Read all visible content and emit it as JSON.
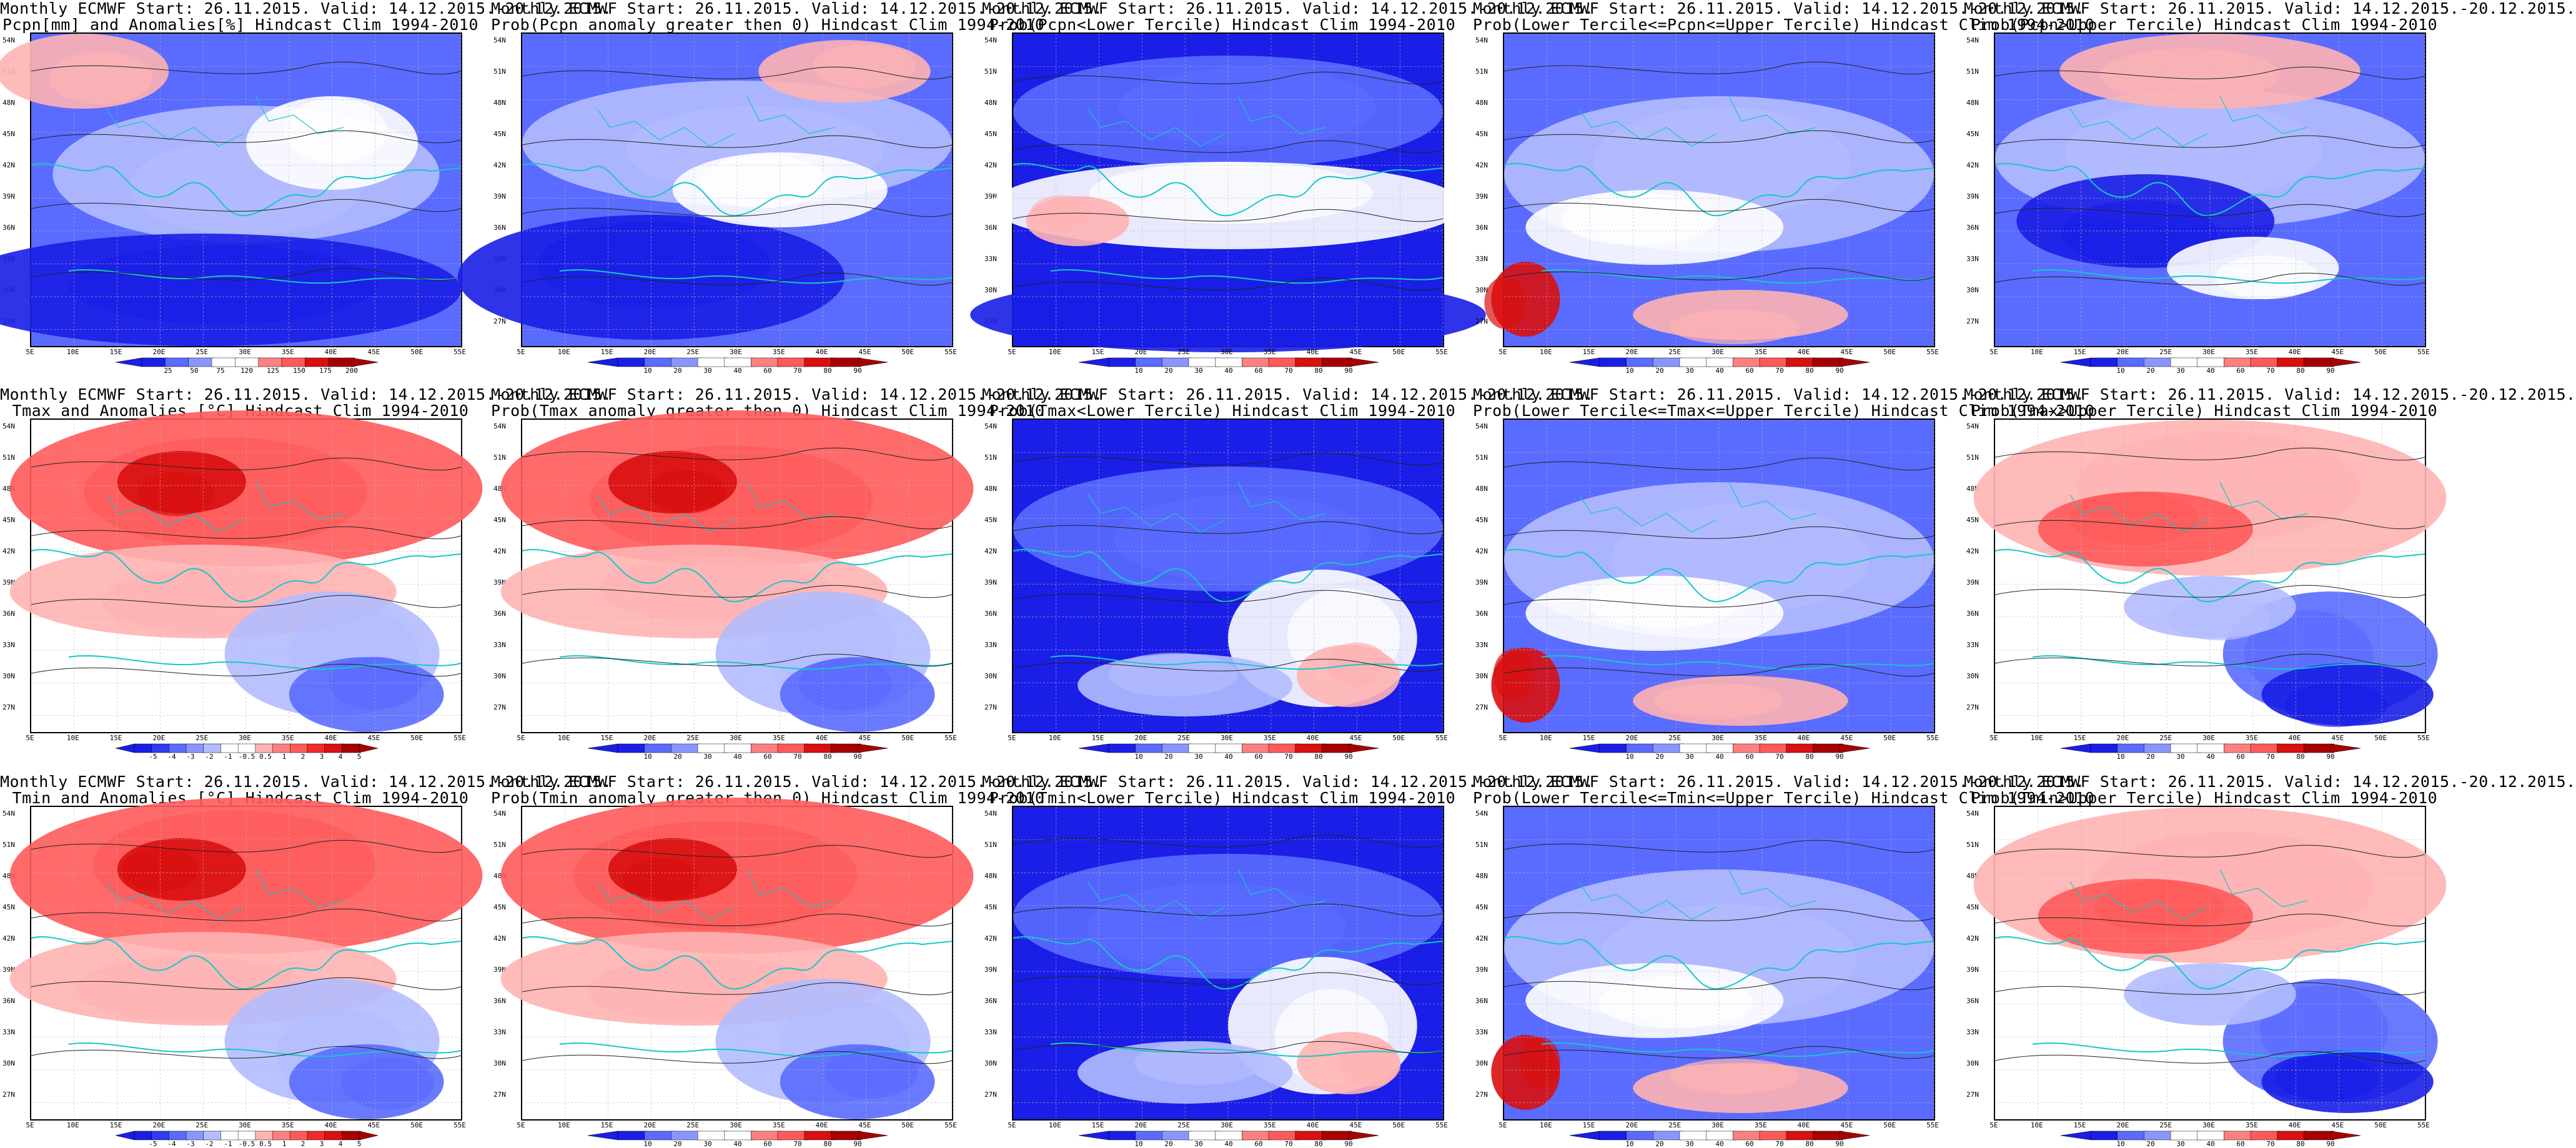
{
  "header_line1": "Monthly ECMWF Start: 26.11.2015. Valid: 14.12.2015.-20.12.2015.",
  "lat_labels": [
    "54N",
    "51N",
    "48N",
    "45N",
    "42N",
    "39N",
    "36N",
    "33N",
    "30N",
    "27N"
  ],
  "lon_labels": [
    "5E",
    "10E",
    "15E",
    "20E",
    "25E",
    "30E",
    "35E",
    "40E",
    "45E",
    "50E",
    "55E"
  ],
  "colorbars": {
    "pcpn_anom": [
      "25",
      "50",
      "75",
      "120",
      "125",
      "150",
      "175",
      "200"
    ],
    "temp_anom": [
      "-5",
      "-4",
      "-3",
      "-2",
      "-1",
      "-0.5",
      "0.5",
      "1",
      "2",
      "3",
      "4",
      "5"
    ],
    "prob": [
      "10",
      "20",
      "30",
      "40",
      "60",
      "70",
      "80",
      "90"
    ]
  },
  "rows": [
    {
      "variable": "Pcpn",
      "panels": [
        {
          "title2": "Pcpn[mm] and Anomalies[%] Hindcast Clim 1994-2010",
          "bar": "pcpn_anom",
          "scheme": "anom"
        },
        {
          "title2": "Prob(Pcpn anomaly greater then 0) Hindcast Clim 1994-2010",
          "bar": "prob",
          "scheme": "prob"
        },
        {
          "title2": "Prob(Pcpn<Lower Tercile) Hindcast Clim 1994-2010",
          "bar": "prob",
          "scheme": "lower"
        },
        {
          "title2": "Prob(Lower Tercile<=Pcpn<=Upper Tercile) Hindcast Clim 1994-2010",
          "bar": "prob",
          "scheme": "mid"
        },
        {
          "title2": "Prob(Pcpn>Upper Tercile) Hindcast Clim 1994-2010",
          "bar": "prob",
          "scheme": "upper"
        }
      ]
    },
    {
      "variable": "Tmax",
      "panels": [
        {
          "title2": "Tmax and Anomalies [°C] Hindcast Clim 1994-2010",
          "bar": "temp_anom",
          "scheme": "warm"
        },
        {
          "title2": "Prob(Tmax anomaly greater then 0) Hindcast Clim 1994-2010",
          "bar": "prob",
          "scheme": "warm"
        },
        {
          "title2": "Prob(Tmax<Lower Tercile) Hindcast Clim 1994-2010",
          "bar": "prob",
          "scheme": "cold"
        },
        {
          "title2": "Prob(Lower Tercile<=Tmax<=Upper Tercile) Hindcast Clim 1994-2010",
          "bar": "prob",
          "scheme": "mid"
        },
        {
          "title2": "Prob(Tmax>Upper Tercile) Hindcast Clim 1994-2010",
          "bar": "prob",
          "scheme": "warm2"
        }
      ]
    },
    {
      "variable": "Tmin",
      "panels": [
        {
          "title2": "Tmin and Anomalies [°C] Hindcast Clim 1994-2010",
          "bar": "temp_anom",
          "scheme": "warm"
        },
        {
          "title2": "Prob(Tmin anomaly greater then 0) Hindcast Clim 1994-2010",
          "bar": "prob",
          "scheme": "warm"
        },
        {
          "title2": "Prob(Tmin<Lower Tercile) Hindcast Clim 1994-2010",
          "bar": "prob",
          "scheme": "cold"
        },
        {
          "title2": "Prob(Lower Tercile<=Tmin<=Upper Tercile) Hindcast Clim 1994-2010",
          "bar": "prob",
          "scheme": "mid"
        },
        {
          "title2": "Prob(Tmin>Upper Tercile) Hindcast Clim 1994-2010",
          "bar": "prob",
          "scheme": "warm2"
        }
      ]
    }
  ],
  "colors": {
    "dark_blue": "#1a1ee6",
    "mid_blue": "#5a6bff",
    "light_blue": "#b3bcff",
    "white": "#ffffff",
    "light_red": "#ffb3b3",
    "mid_red": "#ff5a5a",
    "dark_red": "#d91010",
    "coast": "#14c8c8",
    "contour": "#222222"
  }
}
